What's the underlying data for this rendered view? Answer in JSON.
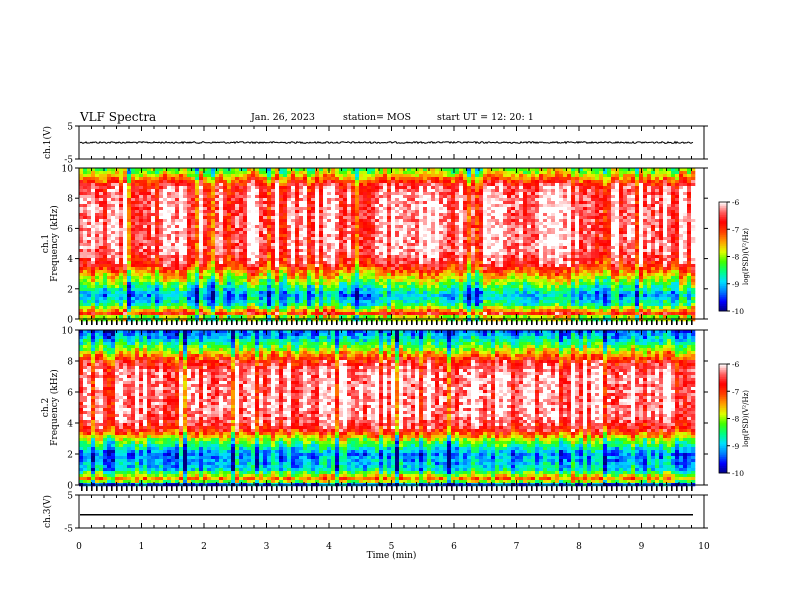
{
  "header": {
    "title": "VLF Spectra",
    "date": "Jan. 26, 2023",
    "station": "station= MOS",
    "start": "start  UT  =   12: 20: 1"
  },
  "chart_data": {
    "type": "heatmap",
    "x_axis": {
      "label": "Time  (min)",
      "range": [
        0,
        10
      ],
      "ticks": [
        "0",
        "1",
        "2",
        "3",
        "4",
        "5",
        "6",
        "7",
        "8",
        "9",
        "10"
      ],
      "data_end": 9.83
    },
    "panels": [
      {
        "name": "ch.1",
        "type": "line",
        "ylabel": "ch.1(V)",
        "ylim": [
          -5,
          5
        ],
        "ticks": [
          "5",
          "-5"
        ],
        "level": 0.0,
        "noise": 0.35
      },
      {
        "name": "ch.1",
        "type": "heatmap",
        "ylabel": "ch.1\nFrequency  (kHz)",
        "ylim": [
          0,
          10
        ],
        "ticks": [
          "0",
          "2",
          "4",
          "6",
          "8",
          "10"
        ],
        "profile": [
          [
            0,
            -9.3
          ],
          [
            0.3,
            -6.6
          ],
          [
            1.0,
            -8.6
          ],
          [
            1.6,
            -9.0
          ],
          [
            2.2,
            -8.3
          ],
          [
            3.0,
            -7.4
          ],
          [
            3.6,
            -6.6
          ],
          [
            4.5,
            -6.2
          ],
          [
            8.0,
            -6.2
          ],
          [
            8.8,
            -6.4
          ],
          [
            9.3,
            -7.2
          ],
          [
            9.8,
            -8.0
          ],
          [
            10,
            -8.0
          ]
        ]
      },
      {
        "name": "ch.2",
        "type": "heatmap",
        "ylabel": "ch.2\nFrequency  (kHz)",
        "ylim": [
          0,
          10
        ],
        "ticks": [
          "0",
          "2",
          "4",
          "6",
          "8",
          "10"
        ],
        "profile": [
          [
            0,
            -9.5
          ],
          [
            0.35,
            -7.1
          ],
          [
            1.0,
            -8.8
          ],
          [
            2.0,
            -9.2
          ],
          [
            2.9,
            -8.0
          ],
          [
            3.6,
            -6.6
          ],
          [
            4.5,
            -6.2
          ],
          [
            7.3,
            -6.2
          ],
          [
            8.0,
            -6.7
          ],
          [
            8.8,
            -8.0
          ],
          [
            9.5,
            -8.9
          ],
          [
            10,
            -9.4
          ]
        ]
      },
      {
        "name": "ch.3",
        "type": "line",
        "ylabel": "ch.3(V)",
        "ylim": [
          -5,
          5
        ],
        "ticks": [
          "5",
          "-5"
        ],
        "level": -1.0,
        "noise": 0.0
      }
    ],
    "colorbar": {
      "label": "log(PSD)(V²/Hz)",
      "range": [
        -10,
        -6
      ],
      "ticks": [
        "-6",
        "-7",
        "-8",
        "-9",
        "-10"
      ],
      "colors": [
        "#000080",
        "#0000ff",
        "#0080ff",
        "#00e0ff",
        "#00ff80",
        "#40ff00",
        "#e0ff00",
        "#ffa000",
        "#ff4000",
        "#ff0000",
        "#ff6060",
        "#ffffff"
      ]
    }
  }
}
